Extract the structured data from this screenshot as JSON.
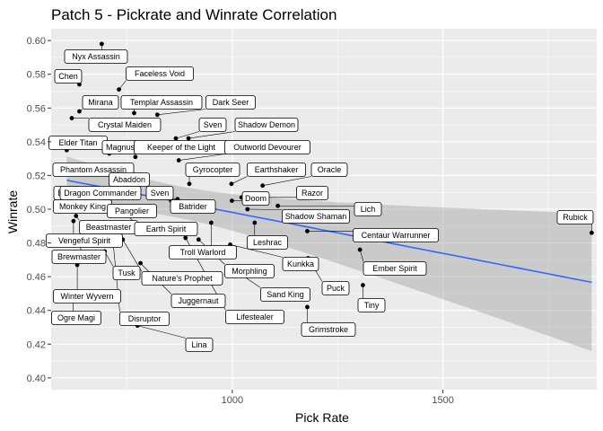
{
  "chart_data": {
    "type": "scatter",
    "title": "Patch 5  - Pickrate and Winrate Correlation",
    "xlabel": "Pick Rate",
    "ylabel": "Winrate",
    "xlim": [
      570,
      1865
    ],
    "ylim": [
      0.393,
      0.607
    ],
    "x_ticks": [
      1000,
      1500
    ],
    "y_ticks": [
      0.4,
      0.42,
      0.44,
      0.46,
      0.48,
      0.5,
      0.52,
      0.54,
      0.56,
      0.58,
      0.6
    ],
    "y_tick_labels": [
      "0.40",
      "0.42",
      "0.44",
      "0.46",
      "0.48",
      "0.50",
      "0.52",
      "0.54",
      "0.56",
      "0.58",
      "0.60"
    ],
    "x_tick_labels": [
      "1000",
      "1500"
    ],
    "grid": true,
    "smooth": {
      "method": "linear",
      "color": "#3366FF",
      "band_color": "#999999"
    },
    "points": [
      {
        "label": "Nyx Assassin",
        "x": 690,
        "y": 0.598
      },
      {
        "label": "Chen",
        "x": 637,
        "y": 0.574
      },
      {
        "label": "Faceless Void",
        "x": 731,
        "y": 0.571
      },
      {
        "label": "Mirana",
        "x": 637,
        "y": 0.558
      },
      {
        "label": "Templar Assassin",
        "x": 767,
        "y": 0.557
      },
      {
        "label": "Dark Seer",
        "x": 822,
        "y": 0.556
      },
      {
        "label": "Crystal Maiden",
        "x": 619,
        "y": 0.554
      },
      {
        "label": "Sven",
        "x": 866,
        "y": 0.542
      },
      {
        "label": "Shadow Demon",
        "x": 896,
        "y": 0.542
      },
      {
        "label": "Elder Titan",
        "x": 607,
        "y": 0.535
      },
      {
        "label": "Magnus",
        "x": 708,
        "y": 0.533
      },
      {
        "label": "Keeper of the Light",
        "x": 770,
        "y": 0.531
      },
      {
        "label": "Outworld Devourer",
        "x": 873,
        "y": 0.529
      },
      {
        "label": "Phantom Assassin",
        "x": 712,
        "y": 0.523
      },
      {
        "label": "Gyrocopter",
        "x": 898,
        "y": 0.515
      },
      {
        "label": "Earthshaker",
        "x": 998,
        "y": 0.515
      },
      {
        "label": "Oracle",
        "x": 1072,
        "y": 0.514
      },
      {
        "label": "Abaddon",
        "x": 778,
        "y": 0.509
      },
      {
        "label": "Bane",
        "x": 610,
        "y": 0.512
      },
      {
        "label": "Dragon Commander",
        "x": 760,
        "y": 0.508
      },
      {
        "label": "Razor",
        "x": 1022,
        "y": 0.507
      },
      {
        "label": "Sven",
        "x": 870,
        "y": 0.506
      },
      {
        "label": "Doom",
        "x": 999,
        "y": 0.505
      },
      {
        "label": "Monkey King",
        "x": 620,
        "y": 0.503
      },
      {
        "label": "Batrider",
        "x": 855,
        "y": 0.505
      },
      {
        "label": "Pangolier",
        "x": 780,
        "y": 0.501
      },
      {
        "label": "Lich",
        "x": 1108,
        "y": 0.502
      },
      {
        "label": "Shadow Shaman",
        "x": 1036,
        "y": 0.5
      },
      {
        "label": "Beastmaster",
        "x": 629,
        "y": 0.496
      },
      {
        "label": "Earth Spirit",
        "x": 752,
        "y": 0.496
      },
      {
        "label": "Vengeful Spirit",
        "x": 623,
        "y": 0.493
      },
      {
        "label": "Centaur Warrunner",
        "x": 1178,
        "y": 0.487
      },
      {
        "label": "Troll Warlord",
        "x": 950,
        "y": 0.492
      },
      {
        "label": "Leshrac",
        "x": 1053,
        "y": 0.492
      },
      {
        "label": "Rubick",
        "x": 1853,
        "y": 0.486
      },
      {
        "label": "Brewmaster",
        "x": 640,
        "y": 0.481
      },
      {
        "label": "Kunkka",
        "x": 995,
        "y": 0.479
      },
      {
        "label": "Ember Spirit",
        "x": 1303,
        "y": 0.476
      },
      {
        "label": "Tusk",
        "x": 697,
        "y": 0.475
      },
      {
        "label": "Nature's Prophet",
        "x": 740,
        "y": 0.482
      },
      {
        "label": "Morphling",
        "x": 920,
        "y": 0.482
      },
      {
        "label": "Puck",
        "x": 1180,
        "y": 0.471
      },
      {
        "label": "Juggernaut",
        "x": 782,
        "y": 0.468
      },
      {
        "label": "Winter Wyvern",
        "x": 632,
        "y": 0.467
      },
      {
        "label": "Sand King",
        "x": 993,
        "y": 0.466
      },
      {
        "label": "Tiny",
        "x": 1310,
        "y": 0.455
      },
      {
        "label": "Disruptor",
        "x": 716,
        "y": 0.483
      },
      {
        "label": "Ogre Magi",
        "x": 622,
        "y": 0.449
      },
      {
        "label": "Lifestealer",
        "x": 889,
        "y": 0.483
      },
      {
        "label": "Grimstroke",
        "x": 1178,
        "y": 0.442
      },
      {
        "label": "Lina",
        "x": 775,
        "y": 0.431
      }
    ]
  }
}
